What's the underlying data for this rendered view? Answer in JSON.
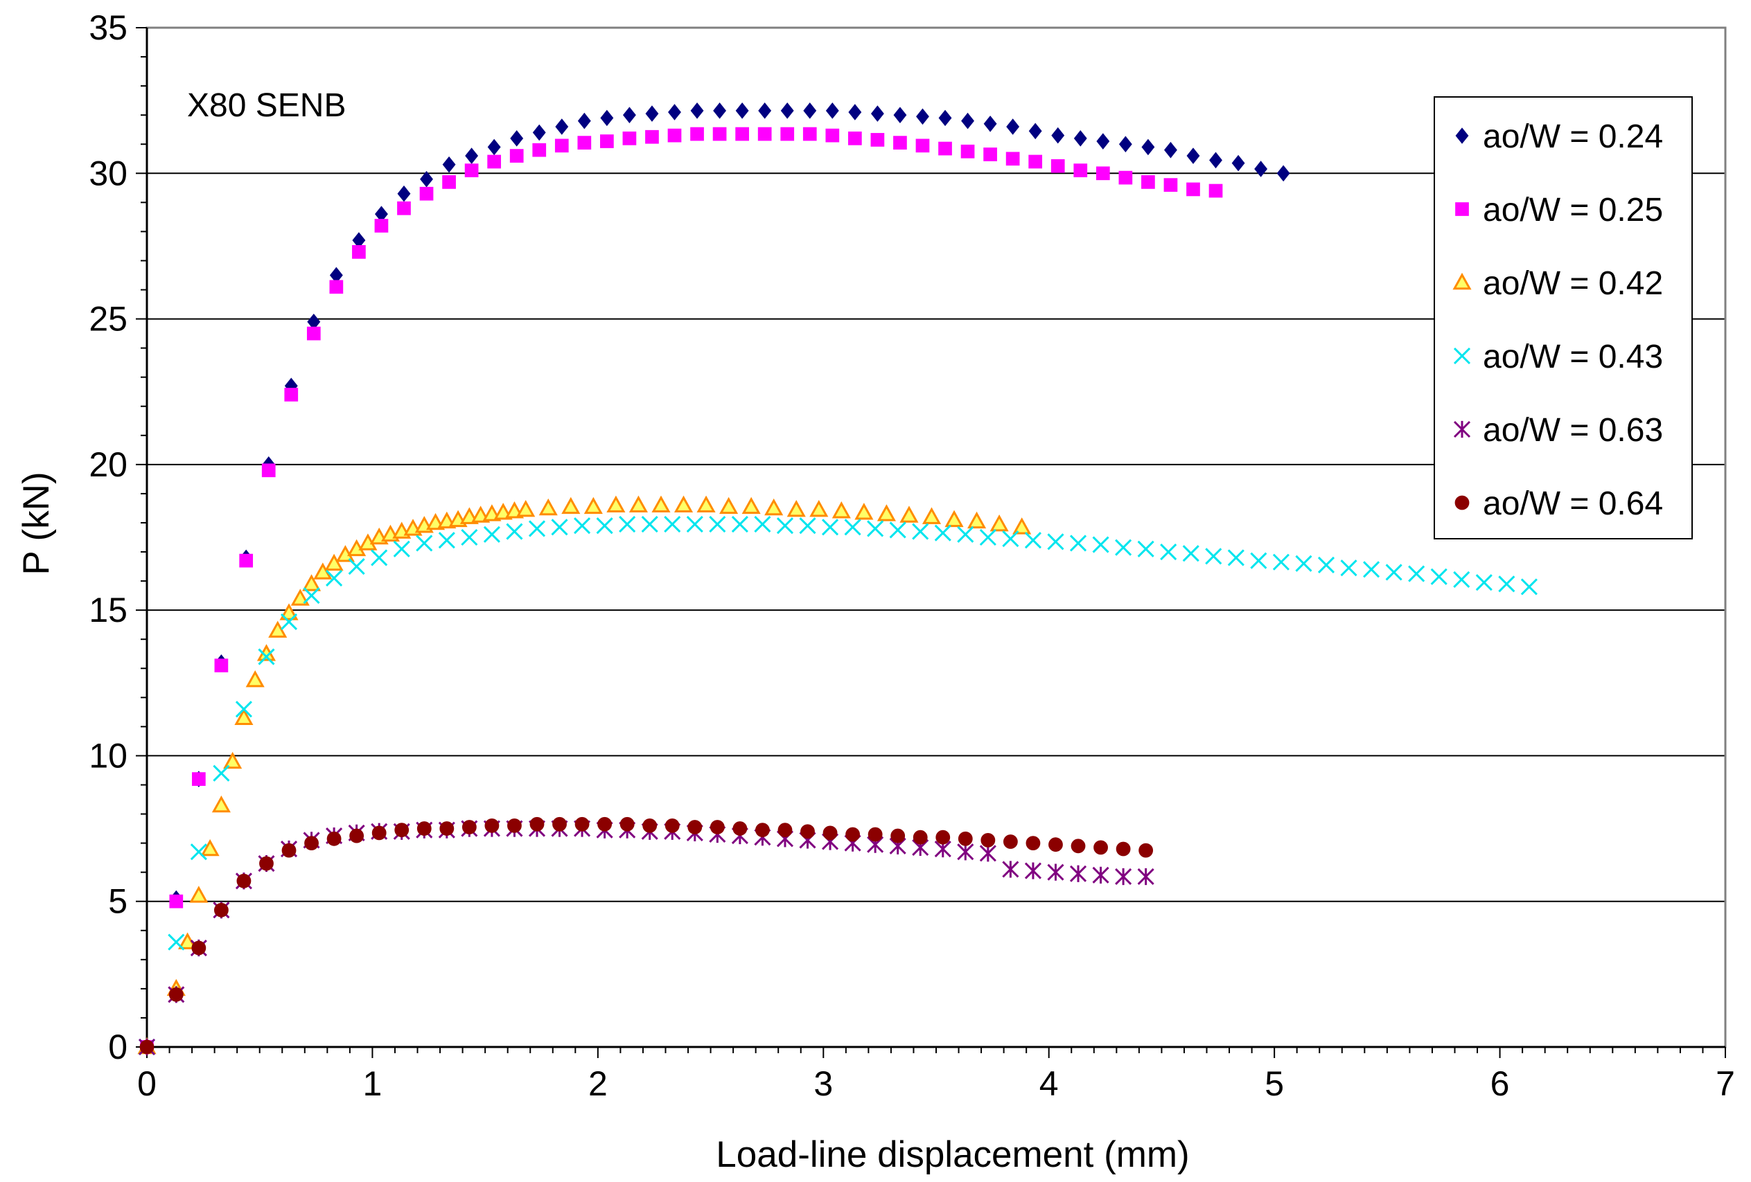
{
  "chart_data": {
    "type": "scatter",
    "title": "",
    "annotation": "X80 SENB",
    "xlabel": "Load-line displacement  (mm)",
    "ylabel": "P (kN)",
    "xlim": [
      0,
      7
    ],
    "ylim": [
      0,
      35
    ],
    "x_ticks": [
      0,
      1,
      2,
      3,
      4,
      5,
      6,
      7
    ],
    "y_ticks": [
      0,
      5,
      10,
      15,
      20,
      25,
      30,
      35
    ],
    "grid": "horizontal major gridlines",
    "legend_position": "top-right",
    "series": [
      {
        "name": "ao/W = 0.24",
        "marker": "diamond",
        "color": "#000080",
        "x": [
          0.0,
          0.13,
          0.23,
          0.33,
          0.44,
          0.54,
          0.64,
          0.74,
          0.84,
          0.94,
          1.04,
          1.14,
          1.24,
          1.34,
          1.44,
          1.54,
          1.64,
          1.74,
          1.84,
          1.94,
          2.04,
          2.14,
          2.24,
          2.34,
          2.44,
          2.54,
          2.64,
          2.74,
          2.84,
          2.94,
          3.04,
          3.14,
          3.24,
          3.34,
          3.44,
          3.54,
          3.64,
          3.74,
          3.84,
          3.94,
          4.04,
          4.14,
          4.24,
          4.34,
          4.44,
          4.54,
          4.64,
          4.74,
          4.84,
          4.94,
          5.04
        ],
        "y": [
          0.0,
          5.1,
          9.2,
          13.2,
          16.8,
          20.0,
          22.7,
          24.9,
          26.5,
          27.7,
          28.6,
          29.3,
          29.8,
          30.3,
          30.6,
          30.9,
          31.2,
          31.4,
          31.6,
          31.8,
          31.9,
          32.0,
          32.05,
          32.1,
          32.15,
          32.15,
          32.15,
          32.15,
          32.15,
          32.15,
          32.15,
          32.1,
          32.05,
          32.0,
          31.95,
          31.9,
          31.8,
          31.7,
          31.6,
          31.45,
          31.3,
          31.2,
          31.1,
          31.0,
          30.9,
          30.8,
          30.6,
          30.45,
          30.35,
          30.15,
          30.0
        ]
      },
      {
        "name": "ao/W = 0.25",
        "marker": "square",
        "color": "#FF00FF",
        "x": [
          0.0,
          0.13,
          0.23,
          0.33,
          0.44,
          0.54,
          0.64,
          0.74,
          0.84,
          0.94,
          1.04,
          1.14,
          1.24,
          1.34,
          1.44,
          1.54,
          1.64,
          1.74,
          1.84,
          1.94,
          2.04,
          2.14,
          2.24,
          2.34,
          2.44,
          2.54,
          2.64,
          2.74,
          2.84,
          2.94,
          3.04,
          3.14,
          3.24,
          3.34,
          3.44,
          3.54,
          3.64,
          3.74,
          3.84,
          3.94,
          4.04,
          4.14,
          4.24,
          4.34,
          4.44,
          4.54,
          4.64,
          4.74
        ],
        "y": [
          0.0,
          5.0,
          9.2,
          13.1,
          16.7,
          19.8,
          22.4,
          24.5,
          26.1,
          27.3,
          28.2,
          28.8,
          29.3,
          29.7,
          30.1,
          30.4,
          30.6,
          30.8,
          30.95,
          31.05,
          31.1,
          31.2,
          31.25,
          31.3,
          31.35,
          31.35,
          31.35,
          31.35,
          31.35,
          31.35,
          31.3,
          31.2,
          31.15,
          31.05,
          30.95,
          30.85,
          30.75,
          30.65,
          30.5,
          30.4,
          30.25,
          30.1,
          30.0,
          29.85,
          29.7,
          29.6,
          29.45,
          29.4
        ]
      },
      {
        "name": "ao/W = 0.42",
        "marker": "triangle",
        "color": "#FF8C00",
        "x": [
          0.0,
          0.13,
          0.18,
          0.23,
          0.28,
          0.33,
          0.38,
          0.43,
          0.48,
          0.53,
          0.58,
          0.63,
          0.68,
          0.73,
          0.78,
          0.83,
          0.88,
          0.93,
          0.98,
          1.03,
          1.08,
          1.13,
          1.18,
          1.23,
          1.28,
          1.33,
          1.38,
          1.43,
          1.48,
          1.53,
          1.58,
          1.63,
          1.68,
          1.78,
          1.88,
          1.98,
          2.08,
          2.18,
          2.28,
          2.38,
          2.48,
          2.58,
          2.68,
          2.78,
          2.88,
          2.98,
          3.08,
          3.18,
          3.28,
          3.38,
          3.48,
          3.58,
          3.68,
          3.78,
          3.88
        ],
        "y": [
          0.0,
          2.0,
          3.6,
          5.2,
          6.8,
          8.3,
          9.8,
          11.3,
          12.6,
          13.5,
          14.3,
          14.9,
          15.4,
          15.9,
          16.3,
          16.6,
          16.9,
          17.1,
          17.3,
          17.5,
          17.6,
          17.7,
          17.8,
          17.9,
          18.0,
          18.05,
          18.1,
          18.2,
          18.25,
          18.3,
          18.35,
          18.4,
          18.45,
          18.5,
          18.55,
          18.55,
          18.6,
          18.6,
          18.6,
          18.6,
          18.6,
          18.55,
          18.55,
          18.5,
          18.45,
          18.45,
          18.4,
          18.35,
          18.3,
          18.25,
          18.2,
          18.1,
          18.05,
          17.95,
          17.85
        ]
      },
      {
        "name": "ao/W = 0.43",
        "marker": "x",
        "color": "#00E5EE",
        "x": [
          0.0,
          0.13,
          0.23,
          0.33,
          0.43,
          0.53,
          0.63,
          0.73,
          0.83,
          0.93,
          1.03,
          1.13,
          1.23,
          1.33,
          1.43,
          1.53,
          1.63,
          1.73,
          1.83,
          1.93,
          2.03,
          2.13,
          2.23,
          2.33,
          2.43,
          2.53,
          2.63,
          2.73,
          2.83,
          2.93,
          3.03,
          3.13,
          3.23,
          3.33,
          3.43,
          3.53,
          3.63,
          3.73,
          3.83,
          3.93,
          4.03,
          4.13,
          4.23,
          4.33,
          4.43,
          4.53,
          4.63,
          4.73,
          4.83,
          4.93,
          5.03,
          5.13,
          5.23,
          5.33,
          5.43,
          5.53,
          5.63,
          5.73,
          5.83,
          5.93,
          6.03,
          6.13
        ],
        "y": [
          0.0,
          3.6,
          6.7,
          9.4,
          11.6,
          13.4,
          14.6,
          15.5,
          16.1,
          16.5,
          16.8,
          17.1,
          17.3,
          17.4,
          17.5,
          17.6,
          17.7,
          17.8,
          17.85,
          17.9,
          17.9,
          17.95,
          17.95,
          17.95,
          17.95,
          17.95,
          17.95,
          17.95,
          17.9,
          17.9,
          17.85,
          17.85,
          17.8,
          17.75,
          17.7,
          17.65,
          17.6,
          17.5,
          17.45,
          17.4,
          17.35,
          17.3,
          17.25,
          17.15,
          17.1,
          17.0,
          16.95,
          16.85,
          16.8,
          16.7,
          16.65,
          16.6,
          16.55,
          16.45,
          16.4,
          16.3,
          16.25,
          16.15,
          16.05,
          15.95,
          15.9,
          15.8
        ]
      },
      {
        "name": "ao/W = 0.63",
        "marker": "star",
        "color": "#800080",
        "x": [
          0.0,
          0.13,
          0.23,
          0.33,
          0.43,
          0.53,
          0.63,
          0.73,
          0.83,
          0.93,
          1.03,
          1.13,
          1.23,
          1.33,
          1.43,
          1.53,
          1.63,
          1.73,
          1.83,
          1.93,
          2.03,
          2.13,
          2.23,
          2.33,
          2.43,
          2.53,
          2.63,
          2.73,
          2.83,
          2.93,
          3.03,
          3.13,
          3.23,
          3.33,
          3.43,
          3.53,
          3.63,
          3.73,
          3.83,
          3.93,
          4.03,
          4.13,
          4.23,
          4.33,
          4.43
        ],
        "y": [
          0.0,
          1.8,
          3.4,
          4.7,
          5.7,
          6.3,
          6.8,
          7.1,
          7.25,
          7.35,
          7.4,
          7.4,
          7.45,
          7.45,
          7.5,
          7.5,
          7.5,
          7.5,
          7.5,
          7.5,
          7.45,
          7.45,
          7.4,
          7.4,
          7.35,
          7.3,
          7.25,
          7.2,
          7.15,
          7.1,
          7.05,
          7.0,
          6.95,
          6.9,
          6.85,
          6.8,
          6.7,
          6.65,
          6.1,
          6.05,
          6.0,
          5.95,
          5.9,
          5.85,
          5.85
        ]
      },
      {
        "name": "ao/W = 0.64",
        "marker": "circle",
        "color": "#8B0000",
        "x": [
          0.0,
          0.13,
          0.23,
          0.33,
          0.43,
          0.53,
          0.63,
          0.73,
          0.83,
          0.93,
          1.03,
          1.13,
          1.23,
          1.33,
          1.43,
          1.53,
          1.63,
          1.73,
          1.83,
          1.93,
          2.03,
          2.13,
          2.23,
          2.33,
          2.43,
          2.53,
          2.63,
          2.73,
          2.83,
          2.93,
          3.03,
          3.13,
          3.23,
          3.33,
          3.43,
          3.53,
          3.63,
          3.73,
          3.83,
          3.93,
          4.03,
          4.13,
          4.23,
          4.33,
          4.43
        ],
        "y": [
          0.0,
          1.8,
          3.4,
          4.7,
          5.7,
          6.3,
          6.75,
          7.0,
          7.15,
          7.25,
          7.35,
          7.45,
          7.5,
          7.5,
          7.55,
          7.6,
          7.6,
          7.65,
          7.65,
          7.65,
          7.65,
          7.65,
          7.6,
          7.6,
          7.55,
          7.55,
          7.5,
          7.45,
          7.45,
          7.4,
          7.35,
          7.3,
          7.3,
          7.25,
          7.2,
          7.2,
          7.15,
          7.1,
          7.05,
          7.0,
          6.95,
          6.9,
          6.85,
          6.8,
          6.75
        ]
      }
    ]
  }
}
